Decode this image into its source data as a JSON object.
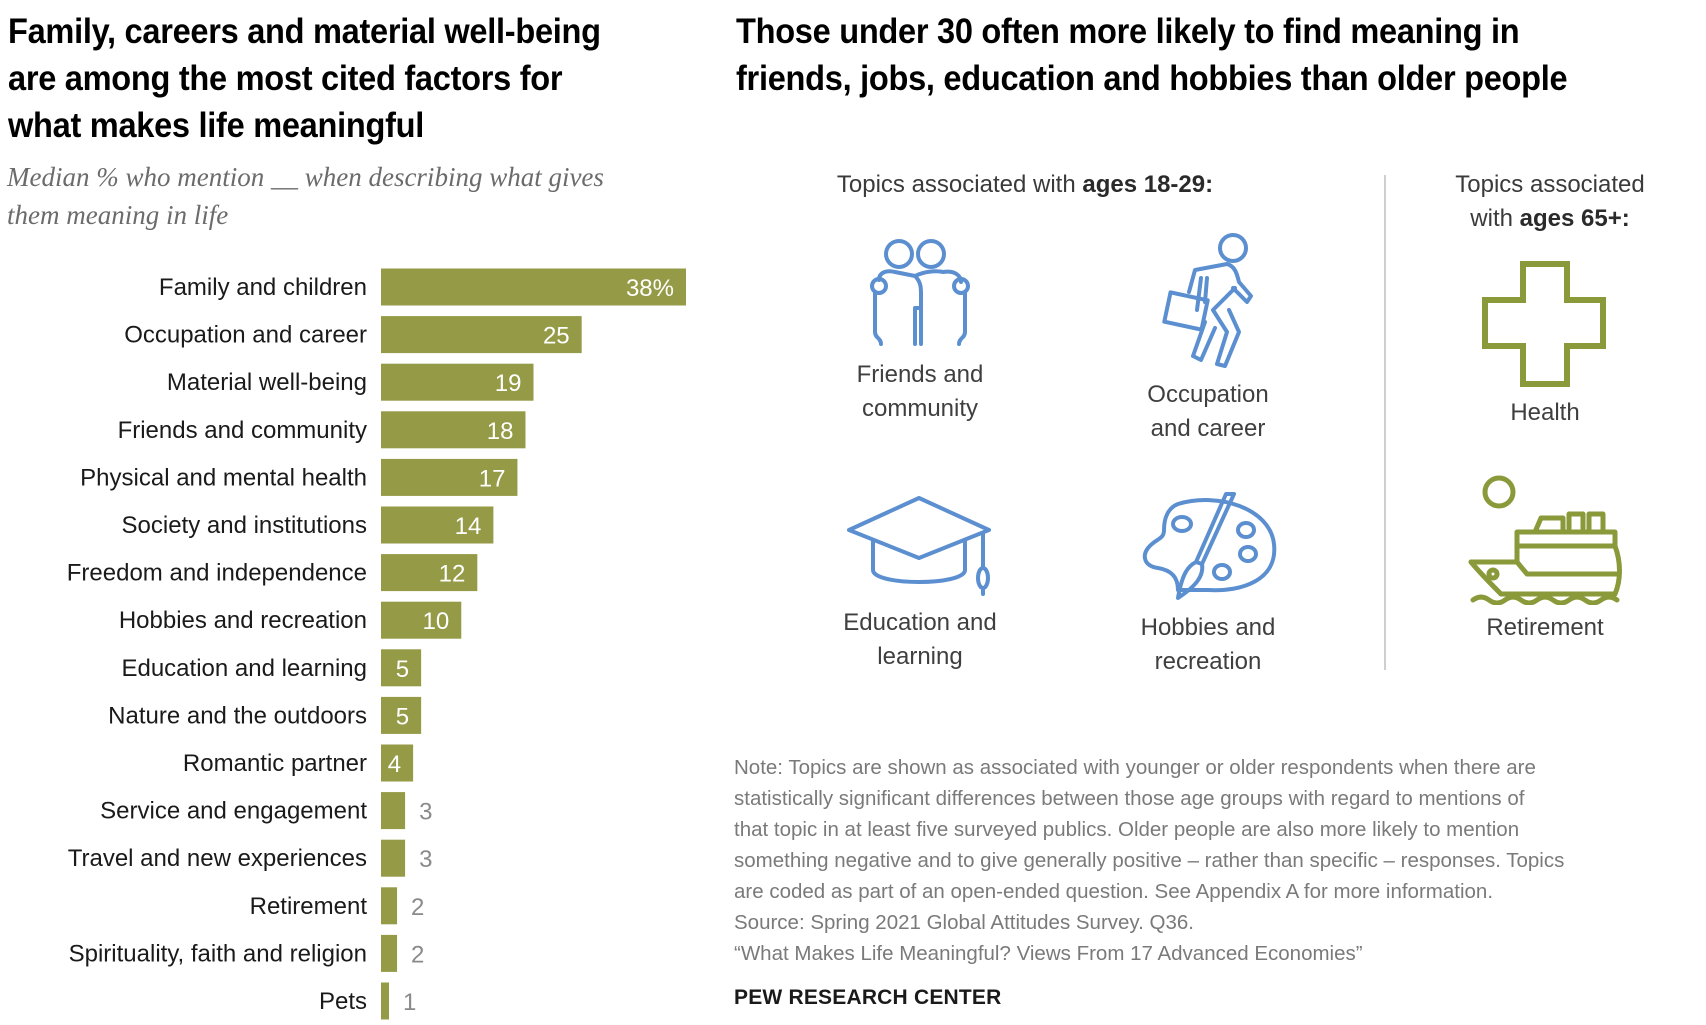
{
  "left_panel": {
    "title_lines": [
      "Family, careers and material well-being",
      "are among the most cited factors for",
      "what makes life meaningful"
    ],
    "subtitle_lines": [
      "Median % who mention __ when describing what gives",
      "them meaning in life"
    ]
  },
  "chart_data": {
    "type": "bar",
    "orientation": "horizontal",
    "title": "Family, careers and material well-being are among the most cited factors for what makes life meaningful",
    "subtitle": "Median % who mention __ when describing what gives them meaning in life",
    "xlabel": "",
    "ylabel": "",
    "xlim": [
      0,
      38
    ],
    "grid": false,
    "value_suffix_first": "%",
    "bar_color": "#949a45",
    "categories": [
      "Family and children",
      "Occupation and career",
      "Material well-being",
      "Friends and community",
      "Physical and mental health",
      "Society and institutions",
      "Freedom and independence",
      "Hobbies and recreation",
      "Education and learning",
      "Nature and the outdoors",
      "Romantic partner",
      "Service and engagement",
      "Travel and new experiences",
      "Retirement",
      "Spirituality, faith and religion",
      "Pets"
    ],
    "values": [
      38,
      25,
      19,
      18,
      17,
      14,
      12,
      10,
      5,
      5,
      4,
      3,
      3,
      2,
      2,
      1
    ],
    "data_labels": [
      "38%",
      "25",
      "19",
      "18",
      "17",
      "14",
      "12",
      "10",
      "5",
      "5",
      "4",
      "3",
      "3",
      "2",
      "2",
      "1"
    ]
  },
  "right_panel": {
    "title_lines": [
      "Those under 30 often more likely to find meaning in",
      "friends, jobs, education and hobbies than older people"
    ],
    "young_group": {
      "heading_prefix": "Topics associated with ",
      "heading_bold": "ages 18-29:",
      "color": "#5b8fd0",
      "topics": [
        {
          "icon": "friends-icon",
          "label_lines": [
            "Friends and",
            "community"
          ]
        },
        {
          "icon": "briefcase-walker-icon",
          "label_lines": [
            "Occupation",
            "and career"
          ]
        },
        {
          "icon": "graduation-cap-icon",
          "label_lines": [
            "Education and",
            "learning"
          ]
        },
        {
          "icon": "paint-palette-icon",
          "label_lines": [
            "Hobbies and",
            "recreation"
          ]
        }
      ]
    },
    "old_group": {
      "heading_line1": "Topics associated",
      "heading_prefix": "with ",
      "heading_bold": "ages 65+:",
      "color": "#8a9a3a",
      "topics": [
        {
          "icon": "health-cross-icon",
          "label_lines": [
            "Health"
          ]
        },
        {
          "icon": "cruise-ship-icon",
          "label_lines": [
            "Retirement"
          ]
        }
      ]
    }
  },
  "footer": {
    "note_lines": [
      "Note: Topics are shown as associated with younger or older respondents when there are",
      "statistically significant differences between those age groups with regard to mentions of",
      "that topic in at least five surveyed publics. Older people are also more likely to mention",
      "something negative and to give generally positive – rather than specific – responses. Topics",
      "are coded as part of an open-ended question. See Appendix A for more information.",
      "Source: Spring 2021 Global Attitudes Survey. Q36.",
      "“What Makes Life Meaningful? Views From 17 Advanced Economies”"
    ],
    "brand": "PEW RESEARCH CENTER"
  }
}
